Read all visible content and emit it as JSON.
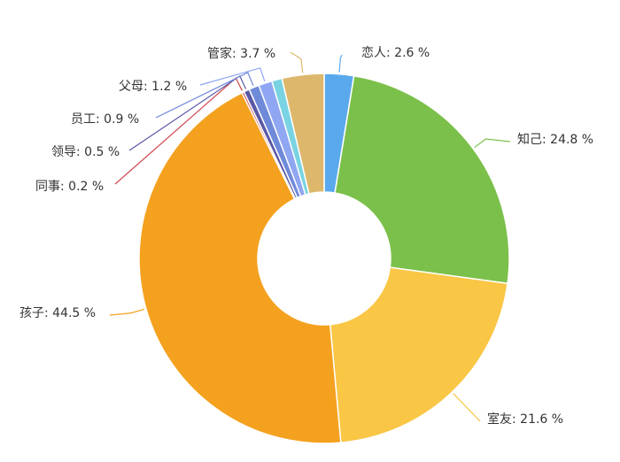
{
  "chart_data": {
    "type": "pie",
    "title": "",
    "label_suffix": " %",
    "slices": [
      {
        "name": "恋人",
        "value": 2.6,
        "color": "#5aa9ec",
        "label": "恋人: 2.6 %"
      },
      {
        "name": "知己",
        "value": 24.8,
        "color": "#7bc04a",
        "label": "知己: 24.8 %"
      },
      {
        "name": "室友",
        "value": 21.6,
        "color": "#f9c645",
        "label": "室友: 21.6 %"
      },
      {
        "name": "孩子",
        "value": 44.5,
        "color": "#f4a11f",
        "label": "孩子: 44.5 %"
      },
      {
        "name": "同事",
        "value": 0.2,
        "color": "#cf4a4f",
        "label": "同事: 0.2 %"
      },
      {
        "name": "领导",
        "value": 0.5,
        "color": "#5b58a6",
        "label": "领导: 0.5 %"
      },
      {
        "name": "员工",
        "value": 0.9,
        "color": "#6f8ad9",
        "label": "员工: 0.9 %"
      },
      {
        "name": "父母",
        "value": 1.2,
        "color": "#8fa6f2",
        "label": "父母: 1.2 %"
      },
      {
        "name": "",
        "value": 0.9,
        "color": "#79d3e2",
        "label": ""
      },
      {
        "name": "管家",
        "value": 3.7,
        "color": "#ddb86c",
        "label": "管家: 3.7 %"
      }
    ]
  }
}
